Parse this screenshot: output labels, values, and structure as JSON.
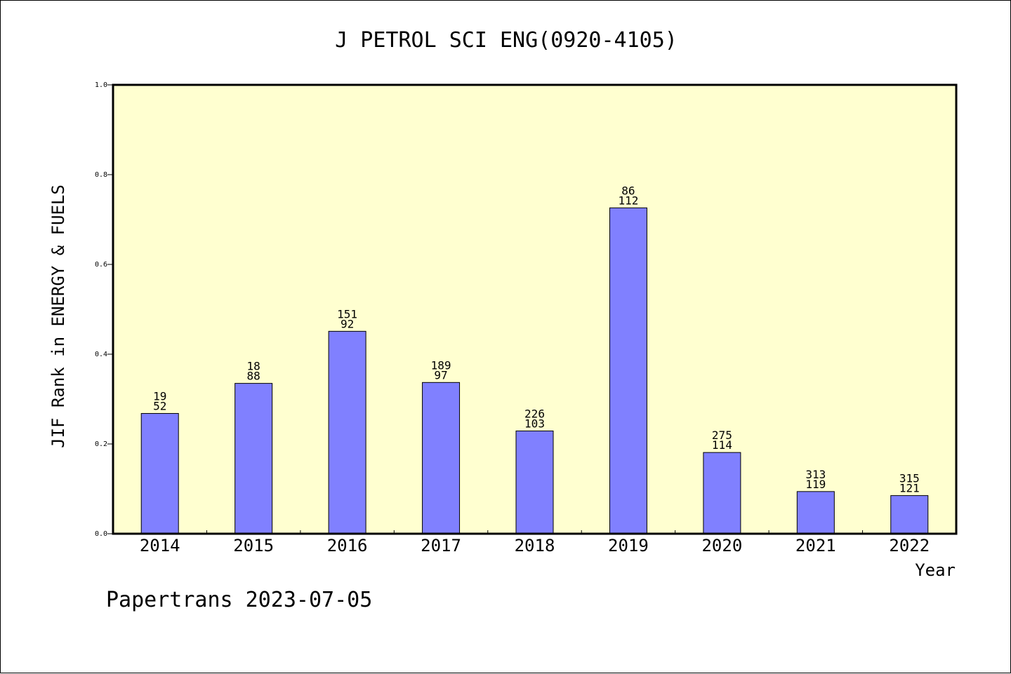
{
  "chart_data": {
    "type": "bar",
    "title": "J PETROL SCI ENG(0920-4105)",
    "xlabel": "Year",
    "ylabel": "JIF Rank in ENERGY & FUELS",
    "ylim": [
      0,
      1
    ],
    "yticks": [
      "0.0",
      "0.2",
      "0.4",
      "0.6",
      "0.8",
      "1.0"
    ],
    "grid": false,
    "categories": [
      "2014",
      "2015",
      "2016",
      "2017",
      "2018",
      "2019",
      "2020",
      "2021",
      "2022"
    ],
    "values": [
      0.268,
      0.335,
      0.451,
      0.337,
      0.229,
      0.726,
      0.181,
      0.094,
      0.085
    ],
    "labels_top": [
      "19",
      "18",
      "151",
      "189",
      "226",
      "86",
      "275",
      "313",
      "315"
    ],
    "labels_bottom": [
      "52",
      "88",
      "92",
      "97",
      "103",
      "112",
      "114",
      "119",
      "121"
    ],
    "colors": {
      "bar": "#8080ff",
      "plot_background": "#ffffd0"
    }
  },
  "footer": {
    "text": "Papertrans 2023-07-05"
  }
}
